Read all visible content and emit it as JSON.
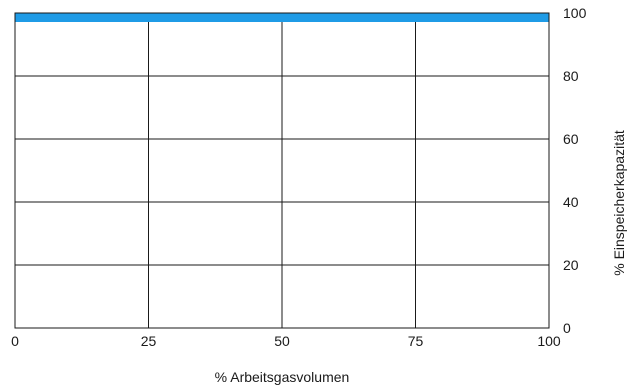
{
  "chart_data": {
    "type": "area",
    "title": "",
    "xlabel": "% Arbeitsgasvolumen",
    "ylabel": "% Einspeicherkapazität",
    "x_ticks": [
      0,
      25,
      50,
      75,
      100
    ],
    "y_ticks": [
      0,
      20,
      40,
      60,
      80,
      100
    ],
    "xlim": [
      0,
      100
    ],
    "ylim": [
      0,
      100
    ],
    "y_axis_side": "right",
    "grid": true,
    "series": [
      {
        "x": [
          0,
          100
        ],
        "y": [
          100,
          100
        ],
        "color": "#1f9be6"
      }
    ]
  }
}
